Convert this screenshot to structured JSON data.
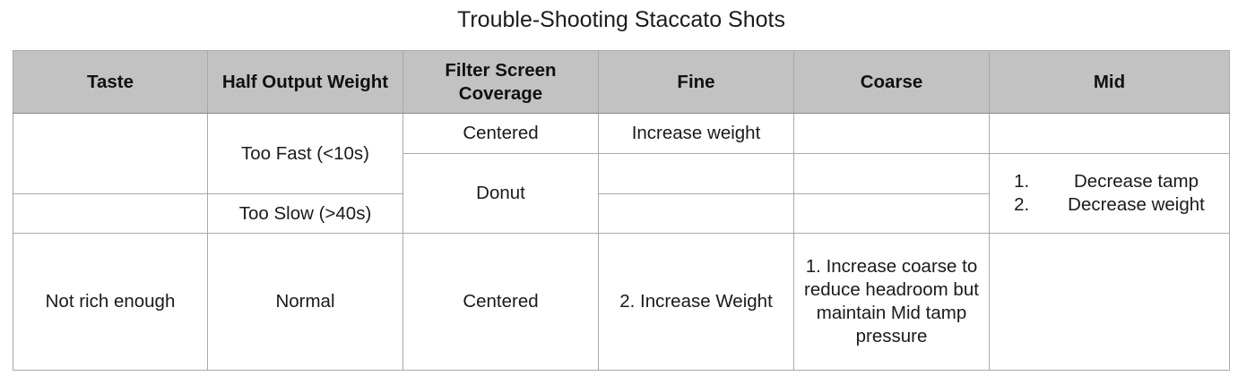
{
  "title": "Trouble-Shooting Staccato Shots",
  "headers": [
    "Taste",
    "Half Output Weight",
    "Filter Screen Coverage",
    "Fine",
    "Coarse",
    "Mid"
  ],
  "rows": {
    "r1": {
      "weight": "Too Fast (<10s)",
      "coverage": "Centered",
      "fine": "Increase weight"
    },
    "r2": {
      "coverage": "Donut",
      "mid": [
        {
          "num": "1.",
          "text": "Decrease tamp"
        },
        {
          "num": "2.",
          "text": "Decrease weight"
        }
      ]
    },
    "r3": {
      "weight": "Too Slow (>40s)"
    },
    "r4": {
      "taste": "Not rich enough",
      "weight": "Normal",
      "coverage": "Centered",
      "fine": "2. Increase Weight",
      "coarse": "1. Increase coarse to reduce headroom but maintain Mid tamp pressure"
    }
  }
}
